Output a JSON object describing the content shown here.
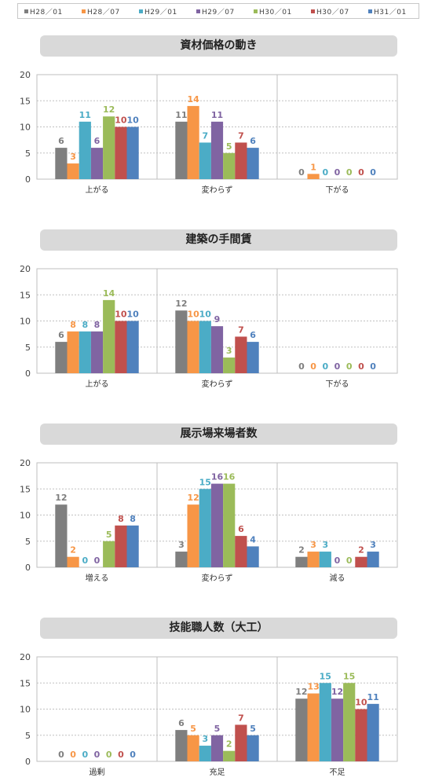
{
  "legend": {
    "series": [
      {
        "name": "H28／01",
        "color": "#7f7f7f"
      },
      {
        "name": "H28／07",
        "color": "#f79646"
      },
      {
        "name": "H29／01",
        "color": "#4bacc6"
      },
      {
        "name": "H29／07",
        "color": "#8064a2"
      },
      {
        "name": "H30／01",
        "color": "#9bbb59"
      },
      {
        "name": "H30／07",
        "color": "#c0504d"
      },
      {
        "name": "H31／01",
        "color": "#4f81bd"
      }
    ]
  },
  "chart_data": [
    {
      "type": "bar",
      "title": "資材価格の動き",
      "categories": [
        "上がる",
        "変わらず",
        "下がる"
      ],
      "ylim": [
        0,
        20
      ],
      "yticks": [
        0,
        5,
        10,
        15,
        20
      ],
      "grid": true,
      "series": [
        {
          "name": "H28／01",
          "values": [
            6,
            11,
            0
          ]
        },
        {
          "name": "H28／07",
          "values": [
            3,
            14,
            1
          ]
        },
        {
          "name": "H29／01",
          "values": [
            11,
            7,
            0
          ]
        },
        {
          "name": "H29／07",
          "values": [
            6,
            11,
            0
          ]
        },
        {
          "name": "H30／01",
          "values": [
            12,
            5,
            0
          ]
        },
        {
          "name": "H30／07",
          "values": [
            10,
            7,
            0
          ]
        },
        {
          "name": "H31／01",
          "values": [
            10,
            6,
            0
          ]
        }
      ]
    },
    {
      "type": "bar",
      "title": "建築の手間賃",
      "categories": [
        "上がる",
        "変わらず",
        "下がる"
      ],
      "ylim": [
        0,
        20
      ],
      "yticks": [
        0,
        5,
        10,
        15,
        20
      ],
      "grid": true,
      "series": [
        {
          "name": "H28／01",
          "values": [
            6,
            12,
            0
          ]
        },
        {
          "name": "H28／07",
          "values": [
            8,
            10,
            0
          ]
        },
        {
          "name": "H29／01",
          "values": [
            8,
            10,
            0
          ]
        },
        {
          "name": "H29／07",
          "values": [
            8,
            9,
            0
          ]
        },
        {
          "name": "H30／01",
          "values": [
            14,
            3,
            0
          ]
        },
        {
          "name": "H30／07",
          "values": [
            10,
            7,
            0
          ]
        },
        {
          "name": "H31／01",
          "values": [
            10,
            6,
            0
          ]
        }
      ]
    },
    {
      "type": "bar",
      "title": "展示場来場者数",
      "categories": [
        "増える",
        "変わらず",
        "減る"
      ],
      "ylim": [
        0,
        20
      ],
      "yticks": [
        0,
        5,
        10,
        15,
        20
      ],
      "grid": true,
      "series": [
        {
          "name": "H28／01",
          "values": [
            12,
            3,
            2
          ]
        },
        {
          "name": "H28／07",
          "values": [
            2,
            12,
            3
          ]
        },
        {
          "name": "H29／01",
          "values": [
            0,
            15,
            3
          ]
        },
        {
          "name": "H29／07",
          "values": [
            0,
            16,
            0
          ]
        },
        {
          "name": "H30／01",
          "values": [
            5,
            16,
            0
          ]
        },
        {
          "name": "H30／07",
          "values": [
            8,
            6,
            2
          ]
        },
        {
          "name": "H31／01",
          "values": [
            8,
            4,
            3
          ]
        }
      ]
    },
    {
      "type": "bar",
      "title": "技能職人数（大工）",
      "categories": [
        "過剰",
        "充足",
        "不足"
      ],
      "ylim": [
        0,
        20
      ],
      "yticks": [
        0,
        5,
        10,
        15,
        20
      ],
      "grid": true,
      "series": [
        {
          "name": "H28／01",
          "values": [
            0,
            6,
            12
          ]
        },
        {
          "name": "H28／07",
          "values": [
            0,
            5,
            13
          ]
        },
        {
          "name": "H29／01",
          "values": [
            0,
            3,
            15
          ]
        },
        {
          "name": "H29／07",
          "values": [
            0,
            5,
            12
          ]
        },
        {
          "name": "H30／01",
          "values": [
            0,
            2,
            15
          ]
        },
        {
          "name": "H30／07",
          "values": [
            0,
            7,
            10
          ]
        },
        {
          "name": "H31／01",
          "values": [
            0,
            5,
            11
          ]
        }
      ]
    }
  ]
}
